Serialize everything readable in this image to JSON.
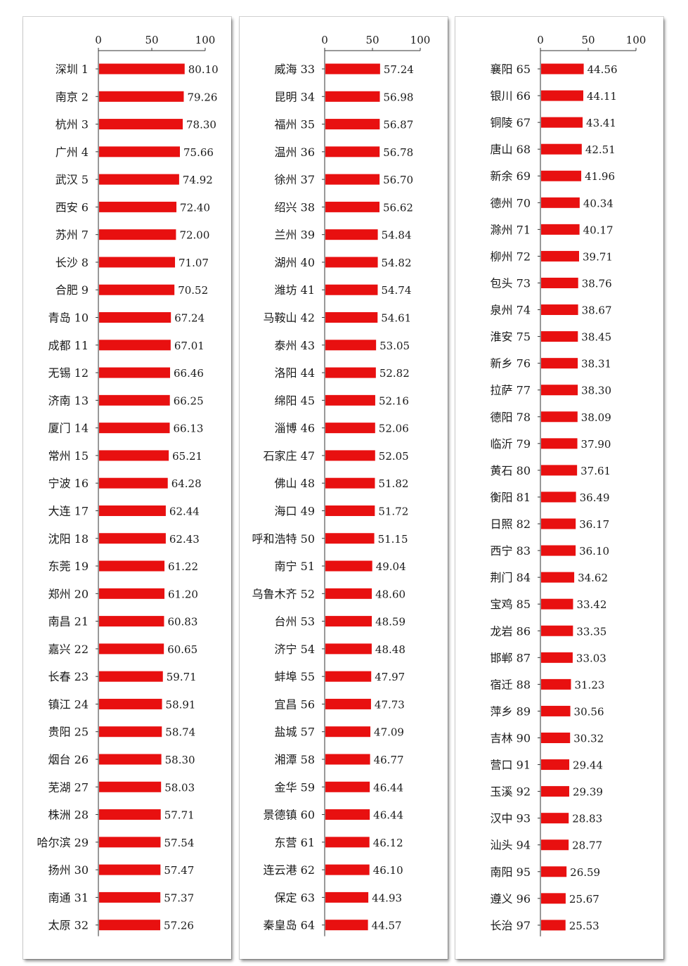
{
  "chart_data": [
    {
      "type": "bar",
      "orientation": "horizontal",
      "xlim": [
        0,
        100
      ],
      "xticks": [
        "0",
        "50",
        "100"
      ],
      "bar_color": "#e81010",
      "categories": [
        "深圳 1",
        "南京 2",
        "杭州 3",
        "广州 4",
        "武汉 5",
        "西安 6",
        "苏州 7",
        "长沙 8",
        "合肥 9",
        "青岛 10",
        "成都 11",
        "无锡 12",
        "济南 13",
        "厦门 14",
        "常州 15",
        "宁波 16",
        "大连 17",
        "沈阳 18",
        "东莞 19",
        "郑州 20",
        "南昌 21",
        "嘉兴 22",
        "长春 23",
        "镇江 24",
        "贵阳 25",
        "烟台 26",
        "芜湖 27",
        "株洲 28",
        "哈尔滨 29",
        "扬州 30",
        "南通 31",
        "太原 32"
      ],
      "values": [
        80.1,
        79.26,
        78.3,
        75.66,
        74.92,
        72.4,
        72.0,
        71.07,
        70.52,
        67.24,
        67.01,
        66.46,
        66.25,
        66.13,
        65.21,
        64.28,
        62.44,
        62.43,
        61.22,
        61.2,
        60.83,
        60.65,
        59.71,
        58.91,
        58.74,
        58.3,
        58.03,
        57.71,
        57.54,
        57.47,
        57.37,
        57.26
      ],
      "value_labels": [
        "80.10",
        "79.26",
        "78.30",
        "75.66",
        "74.92",
        "72.40",
        "72.00",
        "71.07",
        "70.52",
        "67.24",
        "67.01",
        "66.46",
        "66.25",
        "66.13",
        "65.21",
        "64.28",
        "62.44",
        "62.43",
        "61.22",
        "61.20",
        "60.83",
        "60.65",
        "59.71",
        "58.91",
        "58.74",
        "58.30",
        "58.03",
        "57.71",
        "57.54",
        "57.47",
        "57.37",
        "57.26"
      ]
    },
    {
      "type": "bar",
      "orientation": "horizontal",
      "xlim": [
        0,
        100
      ],
      "xticks": [
        "0",
        "50",
        "100"
      ],
      "bar_color": "#e81010",
      "categories": [
        "威海 33",
        "昆明 34",
        "福州 35",
        "温州 36",
        "徐州 37",
        "绍兴 38",
        "兰州 39",
        "湖州 40",
        "潍坊 41",
        "马鞍山 42",
        "泰州 43",
        "洛阳 44",
        "绵阳 45",
        "淄博 46",
        "石家庄 47",
        "佛山 48",
        "海口 49",
        "呼和浩特 50",
        "南宁 51",
        "乌鲁木齐 52",
        "台州 53",
        "济宁 54",
        "蚌埠 55",
        "宜昌 56",
        "盐城 57",
        "湘潭 58",
        "金华 59",
        "景德镇 60",
        "东营 61",
        "连云港 62",
        "保定 63",
        "秦皇岛 64"
      ],
      "values": [
        57.24,
        56.98,
        56.87,
        56.78,
        56.7,
        56.62,
        54.84,
        54.82,
        54.74,
        54.61,
        53.05,
        52.82,
        52.16,
        52.06,
        52.05,
        51.82,
        51.72,
        51.15,
        49.04,
        48.6,
        48.59,
        48.48,
        47.97,
        47.73,
        47.09,
        46.77,
        46.44,
        46.44,
        46.12,
        46.1,
        44.93,
        44.57
      ],
      "value_labels": [
        "57.24",
        "56.98",
        "56.87",
        "56.78",
        "56.70",
        "56.62",
        "54.84",
        "54.82",
        "54.74",
        "54.61",
        "53.05",
        "52.82",
        "52.16",
        "52.06",
        "52.05",
        "51.82",
        "51.72",
        "51.15",
        "49.04",
        "48.60",
        "48.59",
        "48.48",
        "47.97",
        "47.73",
        "47.09",
        "46.77",
        "46.44",
        "46.44",
        "46.12",
        "46.10",
        "44.93",
        "44.57"
      ]
    },
    {
      "type": "bar",
      "orientation": "horizontal",
      "xlim": [
        0,
        100
      ],
      "xticks": [
        "0",
        "50",
        "100"
      ],
      "bar_color": "#e81010",
      "categories": [
        "襄阳 65",
        "银川 66",
        "铜陵 67",
        "唐山 68",
        "新余 69",
        "德州 70",
        "滁州 71",
        "柳州 72",
        "包头 73",
        "泉州 74",
        "淮安 75",
        "新乡 76",
        "拉萨 77",
        "德阳 78",
        "临沂 79",
        "黄石 80",
        "衡阳 81",
        "日照 82",
        "西宁 83",
        "荆门 84",
        "宝鸡 85",
        "龙岩 86",
        "邯郸 87",
        "宿迁 88",
        "萍乡 89",
        "吉林 90",
        "营口 91",
        "玉溪 92",
        "汉中 93",
        "汕头 94",
        "南阳 95",
        "遵义 96",
        "长治 97"
      ],
      "values": [
        44.56,
        44.11,
        43.41,
        42.51,
        41.96,
        40.34,
        40.17,
        39.71,
        38.76,
        38.67,
        38.45,
        38.31,
        38.3,
        38.09,
        37.9,
        37.61,
        36.49,
        36.17,
        36.1,
        34.62,
        33.42,
        33.35,
        33.03,
        31.23,
        30.56,
        30.32,
        29.44,
        29.39,
        28.83,
        28.77,
        26.59,
        25.67,
        25.53
      ],
      "value_labels": [
        "44.56",
        "44.11",
        "43.41",
        "42.51",
        "41.96",
        "40.34",
        "40.17",
        "39.71",
        "38.76",
        "38.67",
        "38.45",
        "38.31",
        "38.30",
        "38.09",
        "37.90",
        "37.61",
        "36.49",
        "36.17",
        "36.10",
        "34.62",
        "33.42",
        "33.35",
        "33.03",
        "31.23",
        "30.56",
        "30.32",
        "29.44",
        "29.39",
        "28.83",
        "28.77",
        "26.59",
        "25.67",
        "25.53"
      ]
    }
  ]
}
